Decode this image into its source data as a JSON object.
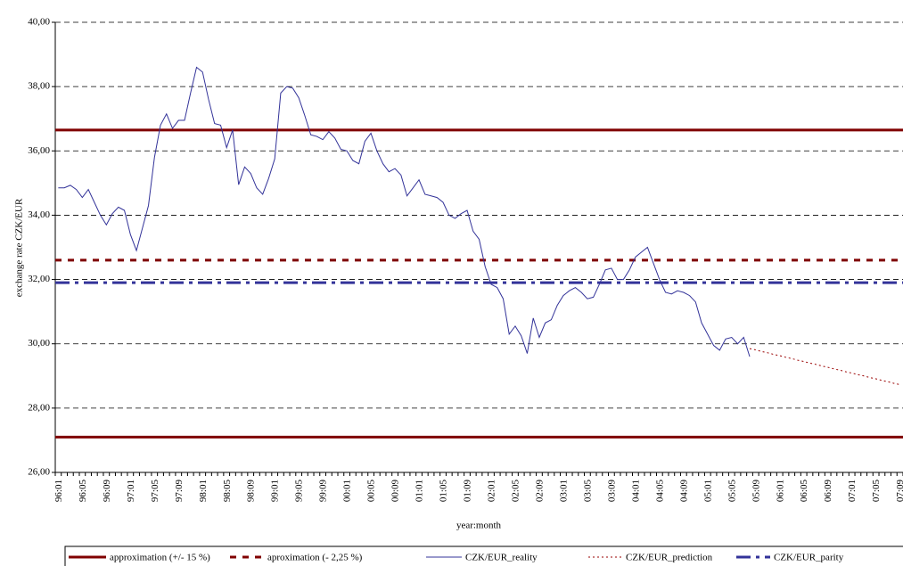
{
  "chart_data": {
    "type": "line",
    "x_label": "year:month",
    "y_label": "exchange rate CZK/EUR",
    "ylim": [
      26,
      40
    ],
    "yticks": [
      {
        "value": 26,
        "label": "26,00"
      },
      {
        "value": 28,
        "label": "28,00"
      },
      {
        "value": 30,
        "label": "30,00"
      },
      {
        "value": 32,
        "label": "32,00"
      },
      {
        "value": 34,
        "label": "34,00"
      },
      {
        "value": 36,
        "label": "36,00"
      },
      {
        "value": 38,
        "label": "38,00"
      },
      {
        "value": 40,
        "label": "40,00"
      }
    ],
    "grid": true,
    "categories": [
      "96:01",
      null,
      null,
      null,
      "96:05",
      null,
      null,
      null,
      "96:09",
      null,
      null,
      null,
      "97:01",
      null,
      null,
      null,
      "97:05",
      null,
      null,
      null,
      "97:09",
      null,
      null,
      null,
      "98:01",
      null,
      null,
      null,
      "98:05",
      null,
      null,
      null,
      "98:09",
      null,
      null,
      null,
      "99:01",
      null,
      null,
      null,
      "99:05",
      null,
      null,
      null,
      "99:09",
      null,
      null,
      null,
      "00:01",
      null,
      null,
      null,
      "00:05",
      null,
      null,
      null,
      "00:09",
      null,
      null,
      null,
      "01:01",
      null,
      null,
      null,
      "01:05",
      null,
      null,
      null,
      "01:09",
      null,
      null,
      null,
      "02:01",
      null,
      null,
      null,
      "02:05",
      null,
      null,
      null,
      "02:09",
      null,
      null,
      null,
      "03:01",
      null,
      null,
      null,
      "03:05",
      null,
      null,
      null,
      "03:09",
      null,
      null,
      null,
      "04:01",
      null,
      null,
      null,
      "04:05",
      null,
      null,
      null,
      "04:09",
      null,
      null,
      null,
      "05:01",
      null,
      null,
      null,
      "05:05",
      null,
      null,
      null,
      "05:09",
      null,
      null,
      null,
      "06:01",
      null,
      null,
      null,
      "06:05",
      null,
      null,
      null,
      "06:09",
      null,
      null,
      null,
      "07:01",
      null,
      null,
      null,
      "07:05",
      null,
      null,
      null,
      "07:09"
    ],
    "series": [
      {
        "name": "approximation (+/- 15 %)",
        "color": "#800000",
        "style": "solid",
        "levels": [
          36.65,
          27.1
        ]
      },
      {
        "name": "aproximation (- 2,25 %)",
        "color": "#800000",
        "style": "dash",
        "levels": [
          32.6
        ]
      },
      {
        "name": "CZK/EUR_reality",
        "color": "#333399",
        "style": "thin",
        "values": [
          34.85,
          34.85,
          34.93,
          34.8,
          34.55,
          34.8,
          34.4,
          34.0,
          33.7,
          34.05,
          34.25,
          34.15,
          33.4,
          32.9,
          33.6,
          34.3,
          35.8,
          36.8,
          37.15,
          36.7,
          36.95,
          36.95,
          37.8,
          38.6,
          38.45,
          37.6,
          36.85,
          36.8,
          36.1,
          36.65,
          34.95,
          35.5,
          35.3,
          34.85,
          34.65,
          35.15,
          35.75,
          37.8,
          38.0,
          37.95,
          37.65,
          37.1,
          36.5,
          36.45,
          36.35,
          36.6,
          36.4,
          36.05,
          36.0,
          35.7,
          35.6,
          36.3,
          36.55,
          36.0,
          35.6,
          35.35,
          35.45,
          35.25,
          34.6,
          34.85,
          35.1,
          34.65,
          34.6,
          34.55,
          34.4,
          34.0,
          33.9,
          34.05,
          34.15,
          33.5,
          33.25,
          32.4,
          31.85,
          31.75,
          31.4,
          30.3,
          30.55,
          30.25,
          29.7,
          30.8,
          30.2,
          30.65,
          30.75,
          31.2,
          31.5,
          31.65,
          31.75,
          31.6,
          31.4,
          31.45,
          31.85,
          32.3,
          32.35,
          32.0,
          32.0,
          32.3,
          32.7,
          32.85,
          33.0,
          32.5,
          32.0,
          31.6,
          31.55,
          31.65,
          31.6,
          31.5,
          31.3,
          30.65,
          30.3,
          29.95,
          29.8,
          30.15,
          30.2,
          30.0,
          30.2,
          29.6,
          null,
          null,
          null,
          null,
          null,
          null,
          null,
          null,
          null,
          null,
          null,
          null,
          null,
          null,
          null,
          null,
          null,
          null,
          null,
          null,
          null,
          null,
          null,
          null,
          null
        ]
      },
      {
        "name": "CZK/EUR_prediction",
        "color": "#990000",
        "style": "dot",
        "values": [
          null,
          null,
          null,
          null,
          null,
          null,
          null,
          null,
          null,
          null,
          null,
          null,
          null,
          null,
          null,
          null,
          null,
          null,
          null,
          null,
          null,
          null,
          null,
          null,
          null,
          null,
          null,
          null,
          null,
          null,
          null,
          null,
          null,
          null,
          null,
          null,
          null,
          null,
          null,
          null,
          null,
          null,
          null,
          null,
          null,
          null,
          null,
          null,
          null,
          null,
          null,
          null,
          null,
          null,
          null,
          null,
          null,
          null,
          null,
          null,
          null,
          null,
          null,
          null,
          null,
          null,
          null,
          null,
          null,
          null,
          null,
          null,
          null,
          null,
          null,
          null,
          null,
          null,
          null,
          null,
          null,
          null,
          null,
          null,
          null,
          null,
          null,
          null,
          null,
          null,
          null,
          null,
          null,
          null,
          null,
          null,
          null,
          null,
          null,
          null,
          null,
          null,
          null,
          null,
          null,
          null,
          null,
          null,
          null,
          null,
          null,
          null,
          null,
          null,
          null,
          29.85,
          29.81,
          29.76,
          29.72,
          29.67,
          29.63,
          29.58,
          29.54,
          29.49,
          29.45,
          29.4,
          29.36,
          29.31,
          29.27,
          29.22,
          29.18,
          29.13,
          29.09,
          29.04,
          29.0,
          28.95,
          28.91,
          28.86,
          28.82,
          28.77,
          28.73
        ]
      },
      {
        "name": "CZK/EUR_parity",
        "color": "#333399",
        "style": "dashdot",
        "levels": [
          31.9
        ]
      }
    ]
  }
}
